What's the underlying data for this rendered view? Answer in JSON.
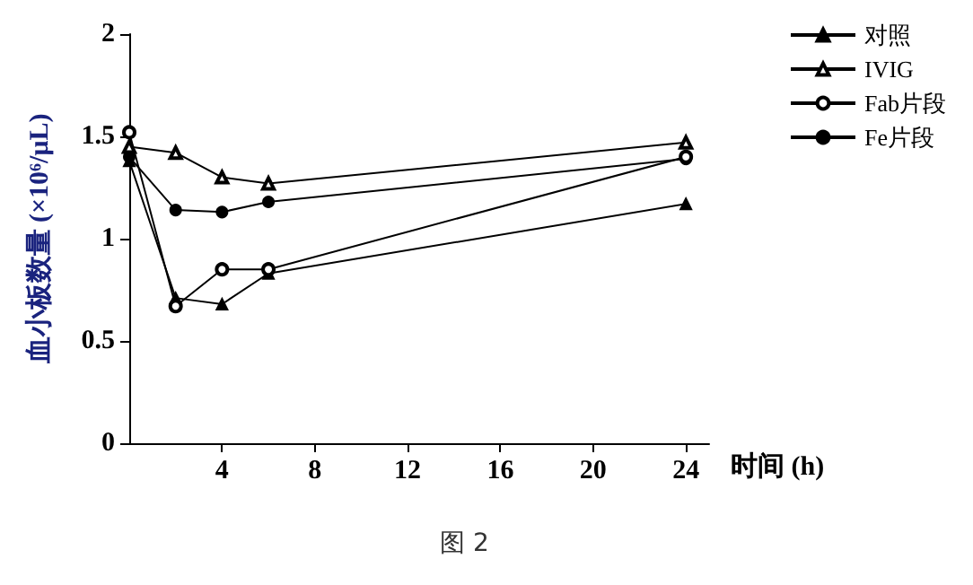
{
  "chart_data": {
    "type": "line",
    "xlabel": "时间 (h)",
    "ylabel": "血小板数量 (×10⁶/μL)",
    "annotations": [
      "图 2"
    ],
    "x": [
      0,
      2,
      4,
      6,
      24
    ],
    "series": [
      {
        "name": "对照",
        "color": "#000000",
        "marker": "triangle",
        "values": [
          1.38,
          0.71,
          0.68,
          0.83,
          1.17
        ]
      },
      {
        "name": "IVIG",
        "color": "#000000",
        "marker": "triangle_open",
        "values": [
          1.45,
          1.42,
          1.3,
          1.27,
          1.47
        ]
      },
      {
        "name": "Fab片段",
        "color": "#000000",
        "marker": "circle_open",
        "values": [
          1.52,
          0.67,
          0.85,
          0.85,
          1.4
        ]
      },
      {
        "name": "Fe片段",
        "color": "#000000",
        "marker": "circle",
        "values": [
          1.4,
          1.14,
          1.13,
          1.18,
          1.39
        ]
      }
    ],
    "xlim": [
      0,
      25
    ],
    "xticks": [
      4,
      8,
      12,
      16,
      20,
      24
    ],
    "ylim": [
      0,
      2
    ],
    "yticks": [
      0,
      0.5,
      1,
      1.5,
      2
    ],
    "grid": false,
    "legend": "top right",
    "line_style": "solid"
  }
}
